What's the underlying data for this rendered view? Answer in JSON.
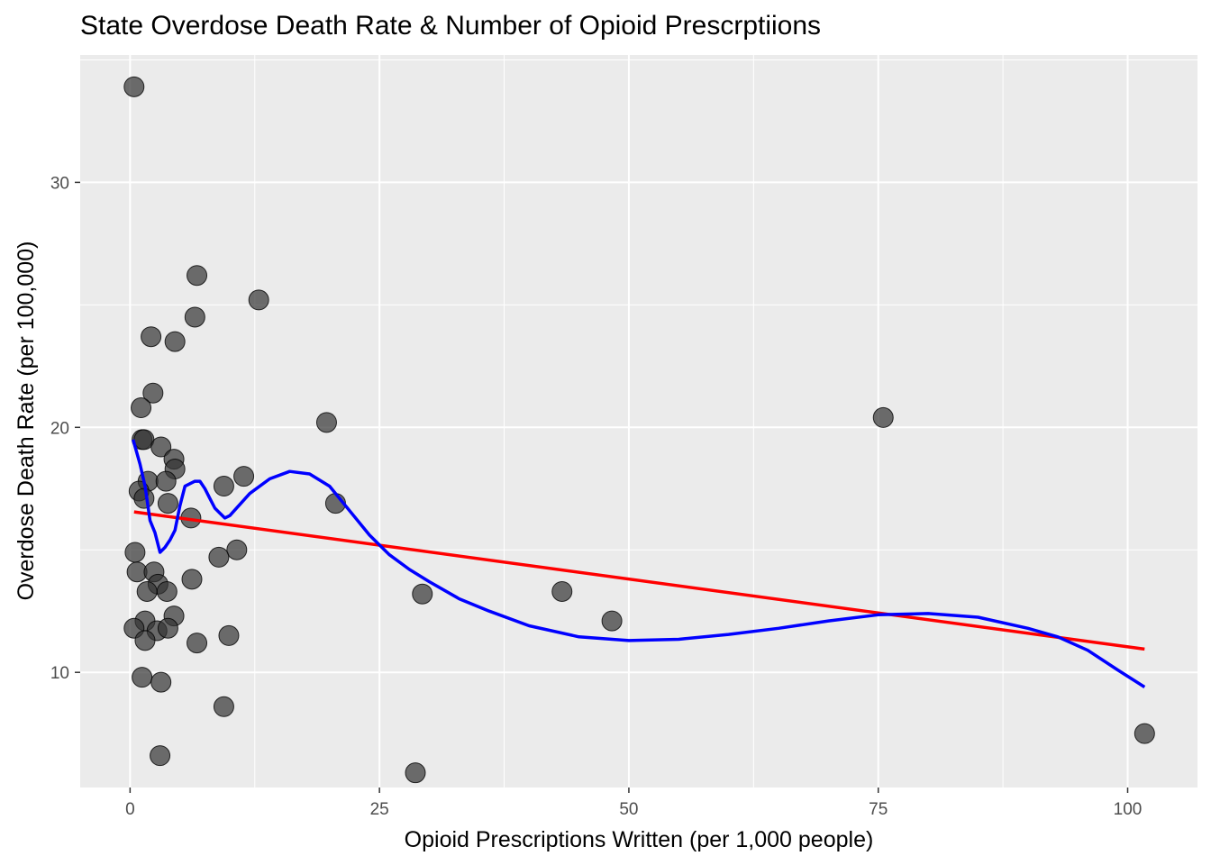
{
  "chart_data": {
    "type": "scatter",
    "title": "State Overdose Death Rate & Number of Opioid Prescrptiions",
    "xlabel": "Opioid Prescriptions Written (per 1,000 people)",
    "ylabel": "Overdose Death Rate (per 100,000)",
    "xlim": [
      -5,
      107
    ],
    "ylim": [
      5.3,
      35.2
    ],
    "x_ticks": [
      0,
      25,
      50,
      75,
      100
    ],
    "y_ticks": [
      10,
      20,
      30
    ],
    "grid": true,
    "panel_background": "#ebebeb",
    "grid_color": "#ffffff",
    "point_color": "#333333",
    "point_alpha": 0.7,
    "points": [
      {
        "x": 0.4,
        "y": 33.9
      },
      {
        "x": 6.7,
        "y": 26.2
      },
      {
        "x": 12.9,
        "y": 25.2
      },
      {
        "x": 6.5,
        "y": 24.5
      },
      {
        "x": 2.1,
        "y": 23.7
      },
      {
        "x": 4.5,
        "y": 23.5
      },
      {
        "x": 2.3,
        "y": 21.4
      },
      {
        "x": 1.1,
        "y": 20.8
      },
      {
        "x": 19.7,
        "y": 20.2
      },
      {
        "x": 75.5,
        "y": 20.4
      },
      {
        "x": 1.2,
        "y": 19.5
      },
      {
        "x": 1.4,
        "y": 19.5
      },
      {
        "x": 3.1,
        "y": 19.2
      },
      {
        "x": 4.4,
        "y": 18.7
      },
      {
        "x": 4.5,
        "y": 18.3
      },
      {
        "x": 11.4,
        "y": 18.0
      },
      {
        "x": 1.8,
        "y": 17.8
      },
      {
        "x": 3.6,
        "y": 17.8
      },
      {
        "x": 9.4,
        "y": 17.6
      },
      {
        "x": 0.9,
        "y": 17.4
      },
      {
        "x": 1.4,
        "y": 17.1
      },
      {
        "x": 3.8,
        "y": 16.9
      },
      {
        "x": 20.6,
        "y": 16.9
      },
      {
        "x": 6.1,
        "y": 16.3
      },
      {
        "x": 0.5,
        "y": 14.9
      },
      {
        "x": 10.7,
        "y": 15.0
      },
      {
        "x": 8.9,
        "y": 14.7
      },
      {
        "x": 0.7,
        "y": 14.1
      },
      {
        "x": 2.4,
        "y": 14.1
      },
      {
        "x": 6.2,
        "y": 13.8
      },
      {
        "x": 2.8,
        "y": 13.6
      },
      {
        "x": 1.7,
        "y": 13.3
      },
      {
        "x": 3.7,
        "y": 13.3
      },
      {
        "x": 43.3,
        "y": 13.3
      },
      {
        "x": 29.3,
        "y": 13.2
      },
      {
        "x": 4.4,
        "y": 12.3
      },
      {
        "x": 1.5,
        "y": 12.1
      },
      {
        "x": 48.3,
        "y": 12.1
      },
      {
        "x": 0.4,
        "y": 11.8
      },
      {
        "x": 2.7,
        "y": 11.7
      },
      {
        "x": 3.8,
        "y": 11.8
      },
      {
        "x": 9.9,
        "y": 11.5
      },
      {
        "x": 1.5,
        "y": 11.3
      },
      {
        "x": 6.7,
        "y": 11.2
      },
      {
        "x": 1.2,
        "y": 9.8
      },
      {
        "x": 3.1,
        "y": 9.6
      },
      {
        "x": 9.4,
        "y": 8.6
      },
      {
        "x": 101.7,
        "y": 7.5
      },
      {
        "x": 3.0,
        "y": 6.6
      },
      {
        "x": 28.6,
        "y": 5.9
      }
    ],
    "series": [
      {
        "type": "line",
        "color": "#ff0000",
        "x": [
          0.4,
          101.7
        ],
        "y": [
          16.55,
          10.95
        ]
      },
      {
        "type": "line",
        "color": "#0000ff",
        "x": [
          0.3,
          1.0,
          1.5,
          2.0,
          2.5,
          3.0,
          3.5,
          4.0,
          4.5,
          5.0,
          5.5,
          6.0,
          6.5,
          7.0,
          7.5,
          8.0,
          8.5,
          9.0,
          9.5,
          10.0,
          12.0,
          14.0,
          16.0,
          18.0,
          20.0,
          22.0,
          24.0,
          26.0,
          28.0,
          30.0,
          33.0,
          36.0,
          40.0,
          45.0,
          50.0,
          55.0,
          60.0,
          65.0,
          70.0,
          75.0,
          80.0,
          85.0,
          90.0,
          93.0,
          96.0,
          99.0,
          101.7
        ],
        "y": [
          19.5,
          18.5,
          17.6,
          16.2,
          15.7,
          14.9,
          15.1,
          15.4,
          15.8,
          16.8,
          17.6,
          17.7,
          17.8,
          17.8,
          17.5,
          17.1,
          16.7,
          16.5,
          16.3,
          16.4,
          17.3,
          17.9,
          18.2,
          18.1,
          17.6,
          16.6,
          15.6,
          14.8,
          14.2,
          13.7,
          13.0,
          12.5,
          11.9,
          11.45,
          11.3,
          11.35,
          11.55,
          11.8,
          12.1,
          12.35,
          12.4,
          12.25,
          11.8,
          11.45,
          10.9,
          10.1,
          9.4
        ]
      }
    ]
  }
}
